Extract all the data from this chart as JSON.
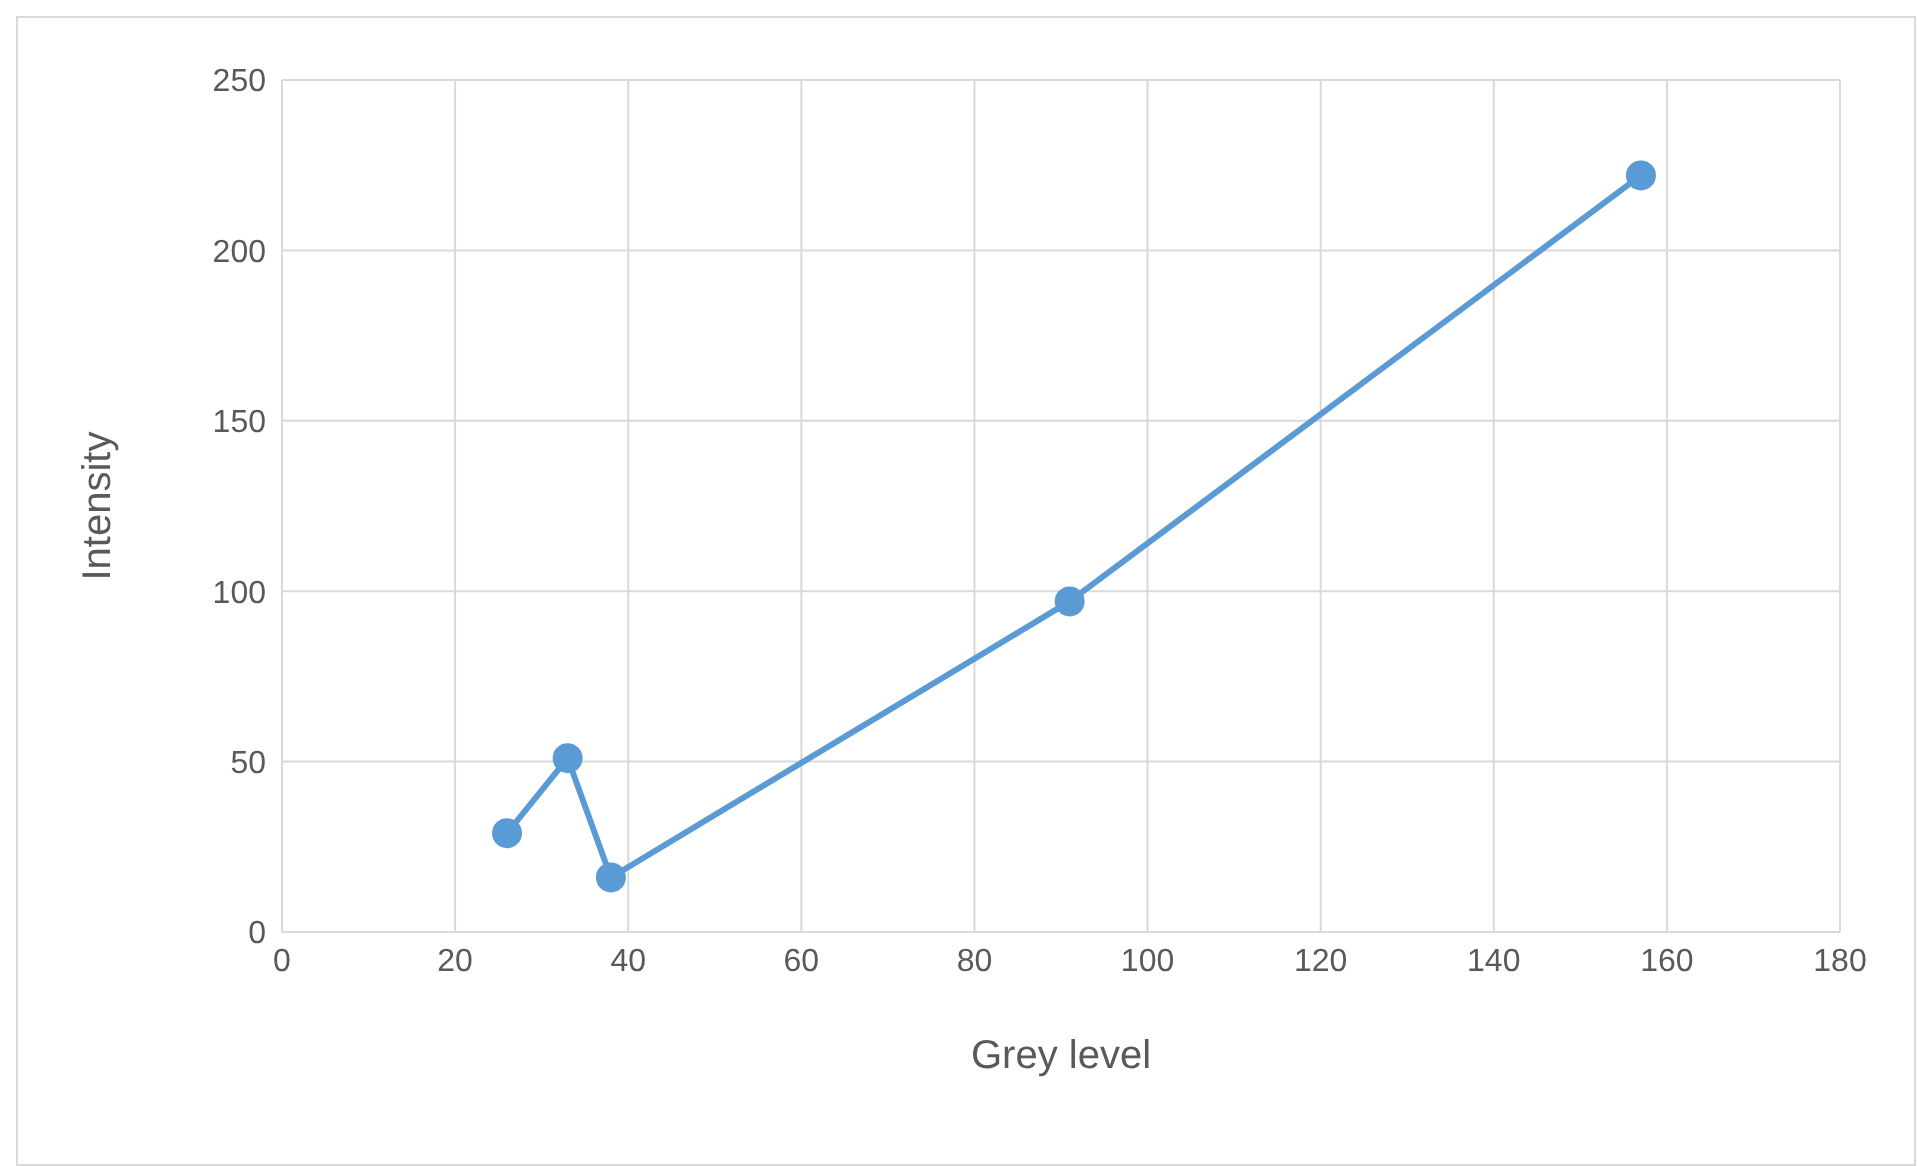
{
  "chart_data": {
    "type": "line",
    "xlabel": "Grey level",
    "ylabel": "Intensity",
    "x": [
      26,
      33,
      38,
      91,
      157
    ],
    "series": [
      {
        "color": "#5b9bd5",
        "values": [
          29,
          51,
          16,
          97,
          222
        ]
      }
    ],
    "xlim": [
      0,
      180
    ],
    "xticks": [
      0,
      20,
      40,
      60,
      80,
      100,
      120,
      140,
      160,
      180
    ],
    "ylim": [
      0,
      250
    ],
    "yticks": [
      0,
      50,
      100,
      150,
      200,
      250
    ],
    "grid": true,
    "legend": false,
    "marker": "circle",
    "line_style": "solid"
  }
}
